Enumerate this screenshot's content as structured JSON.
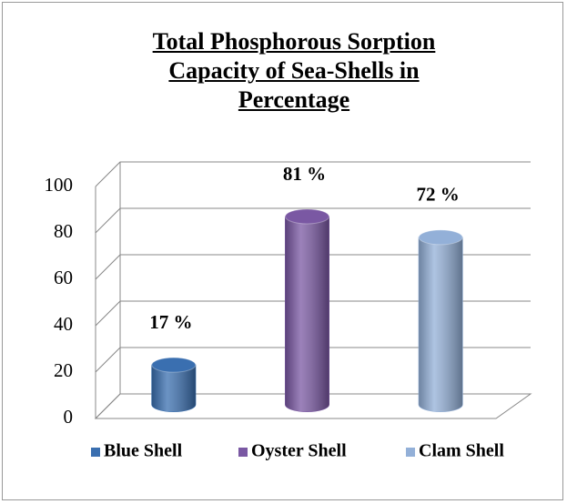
{
  "chart_data": {
    "type": "bar3d",
    "title": "Total Phosphorous Sorption Capacity of Sea-Shells in Percentage",
    "categories": [
      "Blue Shell",
      "Oyster Shell",
      "Clam Shell"
    ],
    "values": [
      17,
      81,
      72
    ],
    "value_labels": [
      "17 %",
      "81 %",
      "72 %"
    ],
    "colors": [
      "#3a6fb0",
      "#7a58a3",
      "#93b0d8"
    ],
    "ylim": [
      0,
      100
    ],
    "yticks": [
      0,
      20,
      40,
      60,
      80,
      100
    ],
    "grid": true,
    "legend": "bottom"
  }
}
